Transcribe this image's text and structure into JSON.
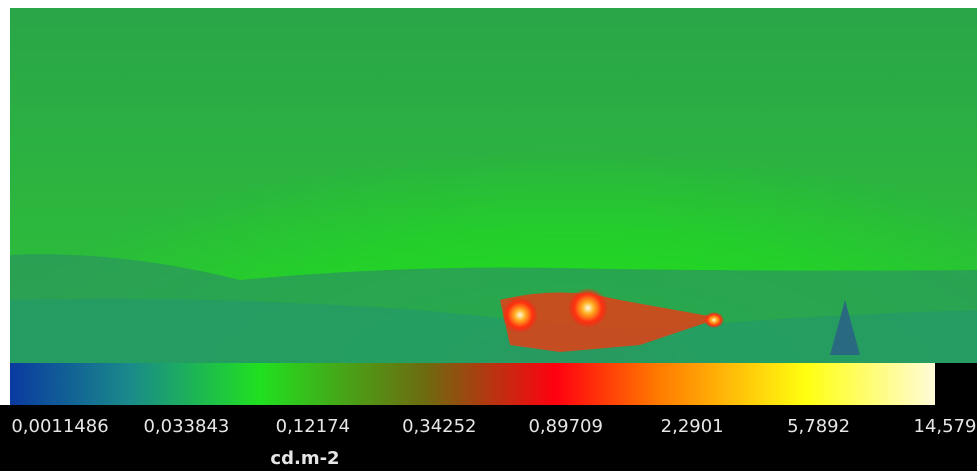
{
  "colorbar": {
    "ticks": [
      "0,0011486",
      "0,033843",
      "0,12174",
      "0,34252",
      "0,89709",
      "2,2901",
      "5,7892",
      "14,579"
    ],
    "unit": "cd.m-2"
  }
}
